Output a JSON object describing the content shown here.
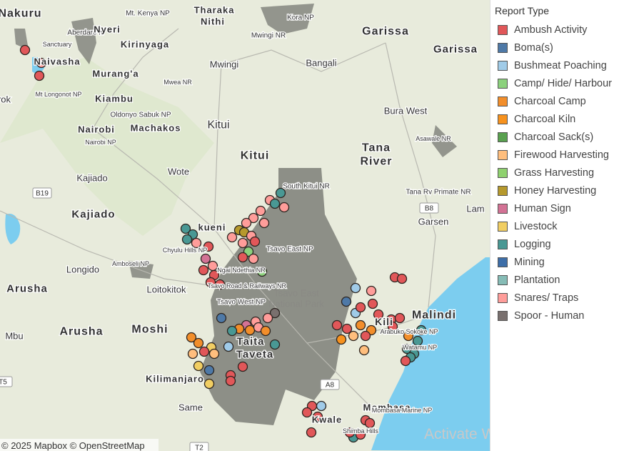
{
  "map": {
    "labels": [
      "Nakuru",
      "Mt. Kenya NP",
      "Tharaka",
      "Nithi",
      "Kora NP",
      "Garissa",
      "Garissa",
      "Aberdare N",
      "Nyeri",
      "Mwingi NR",
      "Sanctuary",
      "Kirinyaga",
      "Naivasha",
      "Murang'a",
      "Bangali",
      "Mwingi",
      "Mwea NR",
      "Kiambu",
      "Mt Longonot NP",
      "rok",
      "Kitui",
      "Kitui",
      "Oldonyo Sabuk NP",
      "Nairobi",
      "Machakos",
      "Nairobi NP",
      "Bura West",
      "Asawale NR",
      "Tana",
      "River",
      "Wote",
      "Kajiado",
      "South Kitui NR",
      "B19",
      "Tana Rv Primate NR",
      "B8",
      "Lam",
      "Kajiado",
      "Garsen",
      "kueni",
      "Chyulu Hills NP",
      "Tsavo East NP",
      "Longido",
      "Amboseli NP",
      "Tsavo East",
      "National Park",
      "Ngai Ndethia NR",
      "Tsavo Road & Railways NR",
      "Arusha",
      "Loitokitok",
      "Tsavo West NP",
      "Malindi",
      "Kili",
      "Arusha",
      "Moshi",
      "Mbu",
      "Arabuko Sokoke NP",
      "Taita",
      "Taveta",
      "Watamu NP",
      "Kilimanjaro",
      "A8",
      "Same",
      "Mombasa",
      "Kwale",
      "Mombasa Marine NP",
      "Shimba Hills",
      "T2",
      "T5"
    ],
    "attribution": "© 2025 Mapbox  © OpenStreetMap",
    "watermark": "Activate Windows"
  },
  "legend": {
    "title": "Report Type",
    "items": [
      {
        "label": "Ambush Activity",
        "color": "#e15759"
      },
      {
        "label": "Boma(s)",
        "color": "#4e79a7"
      },
      {
        "label": "Bushmeat Poaching",
        "color": "#a0cbe8"
      },
      {
        "label": "Camp/ Hide/ Harbour",
        "color": "#8cd17d"
      },
      {
        "label": "Charcoal Camp",
        "color": "#f28e2b"
      },
      {
        "label": "Charcoal Kiln",
        "color": "#f7921e"
      },
      {
        "label": "Charcoal Sack(s)",
        "color": "#59a14f"
      },
      {
        "label": "Firewood Harvesting",
        "color": "#ffbe7d"
      },
      {
        "label": "Grass Harvesting",
        "color": "#8fd16f"
      },
      {
        "label": "Honey Harvesting",
        "color": "#b6992d"
      },
      {
        "label": "Human Sign",
        "color": "#d37295"
      },
      {
        "label": "Livestock",
        "color": "#f1ce63"
      },
      {
        "label": "Logging",
        "color": "#499894"
      },
      {
        "label": "Mining",
        "color": "#3d6ea8"
      },
      {
        "label": "Plantation",
        "color": "#86bcb6"
      },
      {
        "label": "Snares/ Traps",
        "color": "#ff9d9a"
      },
      {
        "label": "Spoor - Human",
        "color": "#79706e"
      }
    ]
  }
}
